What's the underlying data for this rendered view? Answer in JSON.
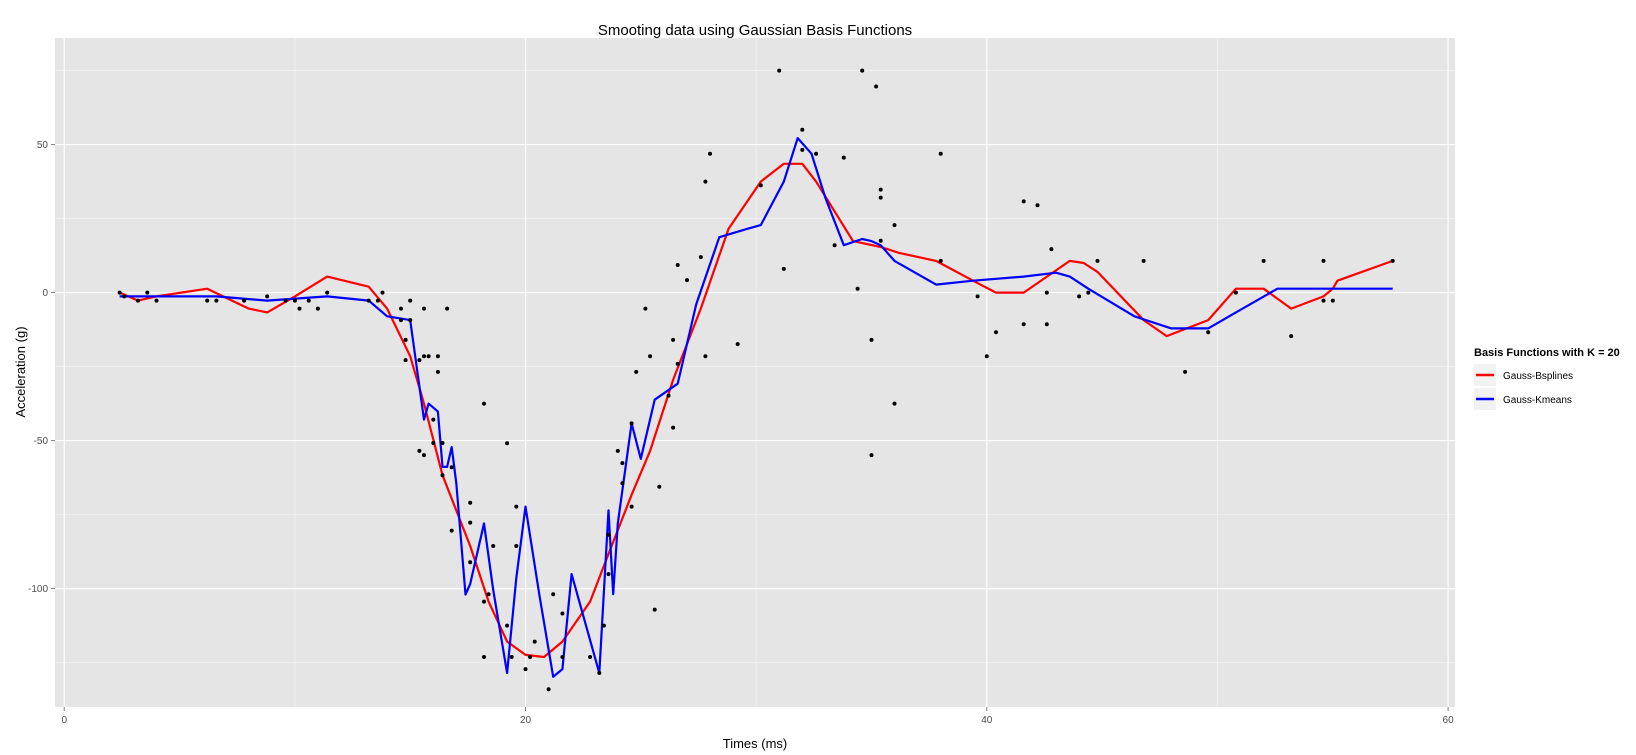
{
  "chart_data": {
    "type": "line",
    "title": "Smooting data using Gaussian Basis Functions",
    "xlabel": "Times (ms)",
    "ylabel": "Acceleration (g)",
    "xlim": [
      -0.4,
      60.3
    ],
    "ylim": [
      -140,
      86
    ],
    "xticks": [
      0,
      20,
      40,
      60
    ],
    "yticks": [
      -100,
      -50,
      0,
      50
    ],
    "background": "#e5e5e5",
    "grid": true,
    "legend": {
      "title": "Basis Functions with K = 20",
      "position": "right"
    },
    "points": [
      [
        2.4,
        0.0
      ],
      [
        2.6,
        -1.3
      ],
      [
        3.2,
        -2.7
      ],
      [
        3.6,
        0.0
      ],
      [
        4.0,
        -2.7
      ],
      [
        6.2,
        -2.7
      ],
      [
        6.6,
        -2.7
      ],
      [
        7.8,
        -2.7
      ],
      [
        8.8,
        -1.3
      ],
      [
        9.6,
        -2.7
      ],
      [
        10.0,
        -2.7
      ],
      [
        10.2,
        -5.4
      ],
      [
        10.6,
        -2.7
      ],
      [
        11.0,
        -5.4
      ],
      [
        11.4,
        0.0
      ],
      [
        13.2,
        -2.7
      ],
      [
        13.6,
        -2.7
      ],
      [
        13.8,
        0.0
      ],
      [
        14.6,
        -5.4
      ],
      [
        14.6,
        -9.3
      ],
      [
        14.8,
        -16.0
      ],
      [
        14.8,
        -22.8
      ],
      [
        15.0,
        -2.7
      ],
      [
        15.0,
        -9.3
      ],
      [
        15.4,
        -22.8
      ],
      [
        15.4,
        -53.5
      ],
      [
        15.6,
        -21.5
      ],
      [
        15.6,
        -5.4
      ],
      [
        15.6,
        -54.9
      ],
      [
        15.8,
        -21.5
      ],
      [
        16.0,
        -50.8
      ],
      [
        16.0,
        -42.9
      ],
      [
        16.2,
        -26.8
      ],
      [
        16.2,
        -21.5
      ],
      [
        16.4,
        -50.8
      ],
      [
        16.4,
        -61.7
      ],
      [
        16.6,
        -5.4
      ],
      [
        16.8,
        -80.4
      ],
      [
        16.8,
        -59.0
      ],
      [
        17.6,
        -91.1
      ],
      [
        17.6,
        -77.7
      ],
      [
        17.6,
        -71.0
      ],
      [
        18.2,
        -104.4
      ],
      [
        18.2,
        -37.5
      ],
      [
        18.2,
        -123.1
      ],
      [
        18.4,
        -101.9
      ],
      [
        18.6,
        -85.6
      ],
      [
        19.2,
        -112.5
      ],
      [
        19.2,
        -50.9
      ],
      [
        19.4,
        -123.1
      ],
      [
        19.6,
        -72.3
      ],
      [
        19.6,
        -85.6
      ],
      [
        20.0,
        -127.2
      ],
      [
        20.2,
        -123.1
      ],
      [
        20.4,
        -117.9
      ],
      [
        21.0,
        -134.0
      ],
      [
        21.2,
        -101.9
      ],
      [
        21.6,
        -123.1
      ],
      [
        21.6,
        -108.4
      ],
      [
        22.8,
        -123.1
      ],
      [
        23.2,
        -128.5
      ],
      [
        23.4,
        -112.5
      ],
      [
        23.6,
        -95.1
      ],
      [
        23.6,
        -81.8
      ],
      [
        24.0,
        -53.5
      ],
      [
        24.2,
        -64.4
      ],
      [
        24.2,
        -57.6
      ],
      [
        24.6,
        -72.3
      ],
      [
        24.6,
        -44.2
      ],
      [
        24.8,
        -26.8
      ],
      [
        25.2,
        -5.4
      ],
      [
        25.4,
        -21.5
      ],
      [
        25.6,
        -107.1
      ],
      [
        25.8,
        -65.6
      ],
      [
        26.2,
        -34.8
      ],
      [
        26.4,
        -45.6
      ],
      [
        26.4,
        -16.0
      ],
      [
        26.6,
        -24.1
      ],
      [
        26.6,
        9.3
      ],
      [
        27.0,
        4.2
      ],
      [
        27.6,
        12.0
      ],
      [
        27.8,
        -21.5
      ],
      [
        27.8,
        37.5
      ],
      [
        28.0,
        46.9
      ],
      [
        29.2,
        -17.4
      ],
      [
        30.2,
        36.2
      ],
      [
        31.0,
        75.0
      ],
      [
        31.2,
        8.0
      ],
      [
        32.0,
        48.2
      ],
      [
        32.0,
        55.0
      ],
      [
        32.6,
        46.9
      ],
      [
        33.4,
        16.0
      ],
      [
        33.8,
        45.6
      ],
      [
        34.4,
        1.3
      ],
      [
        34.6,
        75.0
      ],
      [
        35.0,
        -16.0
      ],
      [
        35.0,
        -54.9
      ],
      [
        35.2,
        69.6
      ],
      [
        35.4,
        34.8
      ],
      [
        35.4,
        32.1
      ],
      [
        35.4,
        17.5
      ],
      [
        36.0,
        -37.5
      ],
      [
        36.0,
        22.8
      ],
      [
        38.0,
        46.9
      ],
      [
        38.0,
        10.7
      ],
      [
        39.6,
        -1.3
      ],
      [
        40.0,
        -21.5
      ],
      [
        40.4,
        -13.4
      ],
      [
        41.6,
        30.8
      ],
      [
        41.6,
        -10.7
      ],
      [
        42.2,
        29.5
      ],
      [
        42.6,
        0.0
      ],
      [
        42.6,
        -10.7
      ],
      [
        42.8,
        14.7
      ],
      [
        44.0,
        -1.3
      ],
      [
        44.4,
        0.0
      ],
      [
        44.8,
        10.7
      ],
      [
        46.8,
        10.7
      ],
      [
        48.6,
        -26.8
      ],
      [
        49.6,
        -13.4
      ],
      [
        50.8,
        0.0
      ],
      [
        52.0,
        10.7
      ],
      [
        53.2,
        -14.7
      ],
      [
        54.6,
        -2.7
      ],
      [
        54.6,
        10.7
      ],
      [
        55.0,
        -2.7
      ],
      [
        57.6,
        10.7
      ]
    ],
    "series": [
      {
        "name": "Gauss-Bsplines",
        "color": "#ff0000",
        "x": [
          2.4,
          3.2,
          4.0,
          6.2,
          8.0,
          8.8,
          10.0,
          11.4,
          13.2,
          14.0,
          15.0,
          15.6,
          16.4,
          17.6,
          18.4,
          19.2,
          20.0,
          20.8,
          21.6,
          22.8,
          23.6,
          24.6,
          25.4,
          26.4,
          27.6,
          28.8,
          30.2,
          31.2,
          32.0,
          32.6,
          34.2,
          35.4,
          36.2,
          37.8,
          39.4,
          40.4,
          41.6,
          43.6,
          44.2,
          44.8,
          46.8,
          47.8,
          49.6,
          50.8,
          52.0,
          53.2,
          54.6,
          55.0,
          55.2,
          57.6
        ],
        "y": [
          0.0,
          -2.7,
          -1.3,
          1.3,
          -5.4,
          -6.7,
          -1.3,
          5.4,
          2.0,
          -5.4,
          -21.5,
          -37.5,
          -61.7,
          -85.6,
          -104.4,
          -117.9,
          -122.4,
          -123.1,
          -117.9,
          -104.4,
          -88.3,
          -68.3,
          -53.5,
          -29.5,
          -5.4,
          21.5,
          37.5,
          43.5,
          43.5,
          37.5,
          17.4,
          15.4,
          13.4,
          10.7,
          4.0,
          0.0,
          0.0,
          10.7,
          10.0,
          7.0,
          -9.3,
          -14.7,
          -9.3,
          1.3,
          1.3,
          -5.4,
          -1.3,
          1.3,
          4.0,
          10.7
        ]
      },
      {
        "name": "Gauss-Kmeans",
        "color": "#0000ff",
        "x": [
          2.4,
          6.6,
          8.8,
          11.4,
          13.2,
          14.0,
          15.0,
          15.6,
          15.8,
          16.2,
          16.4,
          16.6,
          16.8,
          17.0,
          17.2,
          17.4,
          17.6,
          18.2,
          18.6,
          19.2,
          19.6,
          20.0,
          20.6,
          21.2,
          21.6,
          22.0,
          23.2,
          23.6,
          23.8,
          24.0,
          24.6,
          25.0,
          25.6,
          26.6,
          27.4,
          28.4,
          29.6,
          30.2,
          31.2,
          31.8,
          32.4,
          33.0,
          33.8,
          34.6,
          35.0,
          35.4,
          36.0,
          37.8,
          39.4,
          41.6,
          43.0,
          43.6,
          44.4,
          46.4,
          48.0,
          49.6,
          50.8,
          52.6,
          53.6,
          55.2,
          56.2,
          57.6
        ],
        "y": [
          -1.3,
          -1.3,
          -2.7,
          -1.3,
          -2.7,
          -8.0,
          -9.3,
          -42.9,
          -37.5,
          -40.2,
          -58.9,
          -58.9,
          -52.2,
          -64.4,
          -83.1,
          -102.0,
          -98.4,
          -78.0,
          -100.4,
          -128.5,
          -96.5,
          -72.3,
          -102.0,
          -129.8,
          -127.2,
          -95.1,
          -128.5,
          -73.6,
          -101.9,
          -78.0,
          -44.2,
          -56.2,
          -36.2,
          -30.8,
          -4.0,
          18.7,
          21.5,
          22.8,
          37.5,
          52.2,
          46.9,
          32.1,
          16.0,
          18.1,
          17.4,
          16.0,
          10.7,
          2.7,
          4.0,
          5.4,
          6.7,
          5.4,
          1.3,
          -8.0,
          -12.1,
          -12.1,
          -6.7,
          1.3,
          1.3,
          1.3,
          1.3,
          1.3
        ]
      }
    ]
  }
}
